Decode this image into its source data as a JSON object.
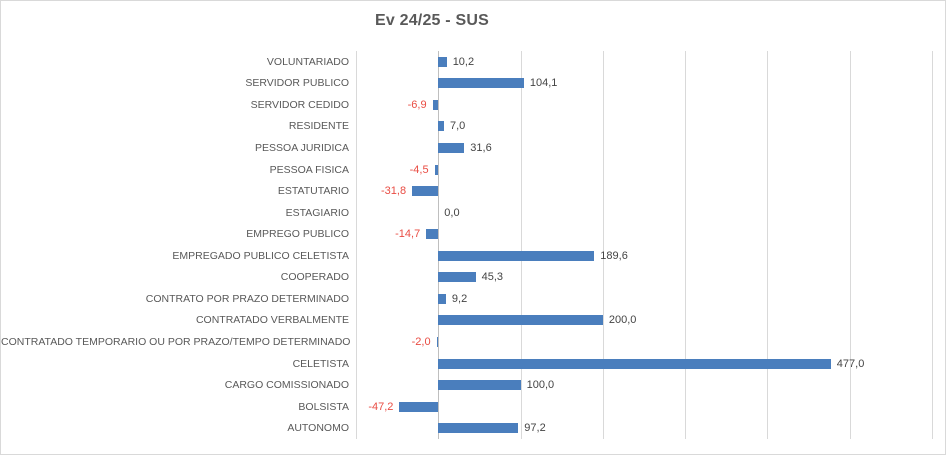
{
  "chart_data": {
    "type": "bar",
    "orientation": "horizontal",
    "title": "Ev 24/25 - SUS",
    "categories": [
      "VOLUNTARIADO",
      "SERVIDOR PUBLICO",
      "SERVIDOR CEDIDO",
      "RESIDENTE",
      "PESSOA JURIDICA",
      "PESSOA FISICA",
      "ESTATUTARIO",
      "ESTAGIARIO",
      "EMPREGO PUBLICO",
      "EMPREGADO PUBLICO CELETISTA",
      "COOPERADO",
      "CONTRATO POR PRAZO DETERMINADO",
      "CONTRATADO VERBALMENTE",
      "CONTRATADO TEMPORARIO OU POR PRAZO/TEMPO DETERMINADO",
      "CELETISTA",
      "CARGO COMISSIONADO",
      "BOLSISTA",
      "AUTONOMO"
    ],
    "values": [
      10.2,
      104.1,
      -6.9,
      7.0,
      31.6,
      -4.5,
      -31.8,
      0.0,
      -14.7,
      189.6,
      45.3,
      9.2,
      200.0,
      -2.0,
      477.0,
      100.0,
      -47.2,
      97.2
    ],
    "value_labels": [
      "10,2",
      "104,1",
      "-6,9",
      "7,0",
      "31,6",
      "-4,5",
      "-31,8",
      "0,0",
      "-14,7",
      "189,6",
      "45,3",
      "9,2",
      "200,0",
      "-2,0",
      "477,0",
      "100,0",
      "-47,2",
      "97,2"
    ],
    "xlim": [
      -100,
      600
    ],
    "gridline_step": 100,
    "grid": true,
    "legend": false,
    "axis_tick_labels_visible": false,
    "colors": {
      "bar": "#4A7EBD",
      "positive_label": "#444444",
      "negative_label": "#E94C43",
      "category_label": "#595959",
      "title": "#595959",
      "gridline": "#D9D9D9",
      "axis_line": "#BFBFBF",
      "border": "#D9D9D9",
      "background": "#FFFFFF"
    }
  }
}
